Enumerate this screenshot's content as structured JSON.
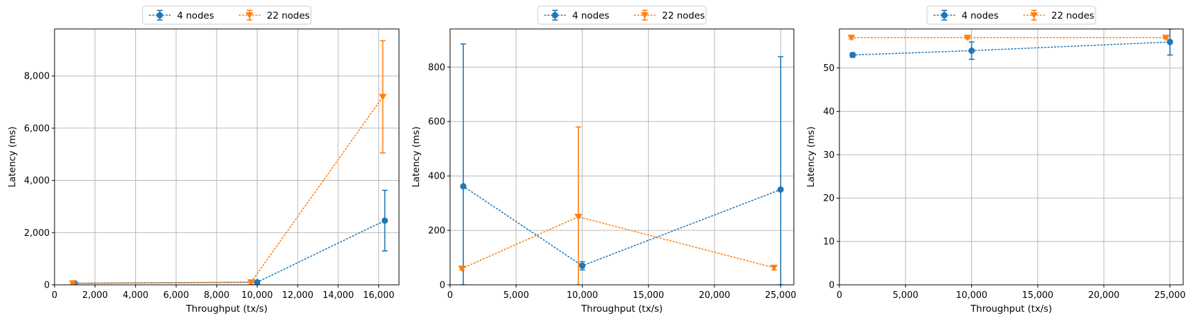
{
  "chart_data": [
    {
      "type": "line",
      "xlabel": "Throughput (tx/s)",
      "ylabel": "Latency (ms)",
      "xlim": [
        0,
        17000
      ],
      "ylim": [
        0,
        9800
      ],
      "xticks": [
        0,
        2000,
        4000,
        6000,
        8000,
        10000,
        12000,
        14000,
        16000
      ],
      "xtick_labels": [
        "0",
        "2,000",
        "4,000",
        "6,000",
        "8,000",
        "10,000",
        "12,000",
        "14,000",
        "16,000"
      ],
      "yticks": [
        0,
        2000,
        4000,
        6000,
        8000
      ],
      "ytick_labels": [
        "0",
        "2,000",
        "4,000",
        "6,000",
        "8,000"
      ],
      "grid": true,
      "legend_position": "top-center (above plot)",
      "series": [
        {
          "name": "4 nodes",
          "color": "#1f77b4",
          "marker": "circle",
          "linestyle": "dotted",
          "x": [
            1000,
            10000,
            16300
          ],
          "y": [
            60,
            100,
            2460
          ],
          "yerr_low": [
            20,
            20,
            1300
          ],
          "yerr_high": [
            20,
            20,
            3620
          ]
        },
        {
          "name": "22 nodes",
          "color": "#ff7f0e",
          "marker": "triangle-down",
          "linestyle": "dotted",
          "x": [
            900,
            9700,
            16200
          ],
          "y": [
            60,
            100,
            7200
          ],
          "yerr_low": [
            20,
            20,
            5050
          ],
          "yerr_high": [
            20,
            20,
            9350
          ]
        }
      ]
    },
    {
      "type": "line",
      "xlabel": "Throughput (tx/s)",
      "ylabel": "Latency (ms)",
      "xlim": [
        0,
        26000
      ],
      "ylim": [
        0,
        940
      ],
      "xticks": [
        0,
        5000,
        10000,
        15000,
        20000,
        25000
      ],
      "xtick_labels": [
        "0",
        "5,000",
        "10,000",
        "15,000",
        "20,000",
        "25,000"
      ],
      "yticks": [
        0,
        200,
        400,
        600,
        800
      ],
      "ytick_labels": [
        "0",
        "200",
        "400",
        "600",
        "800"
      ],
      "grid": true,
      "legend_position": "top-center (above plot)",
      "series": [
        {
          "name": "4 nodes",
          "color": "#1f77b4",
          "marker": "circle",
          "linestyle": "dotted",
          "x": [
            1000,
            10000,
            25000
          ],
          "y": [
            362,
            70,
            350
          ],
          "yerr_low": [
            0,
            55,
            0
          ],
          "yerr_high": [
            885,
            85,
            838
          ]
        },
        {
          "name": "22 nodes",
          "color": "#ff7f0e",
          "marker": "triangle-down",
          "linestyle": "dotted",
          "x": [
            900,
            9700,
            24500
          ],
          "y": [
            60,
            250,
            63
          ],
          "yerr_low": [
            55,
            0,
            55
          ],
          "yerr_high": [
            65,
            580,
            70
          ]
        }
      ]
    },
    {
      "type": "line",
      "xlabel": "Throughput (tx/s)",
      "ylabel": "Latency (ms)",
      "xlim": [
        0,
        26000
      ],
      "ylim": [
        0,
        59
      ],
      "xticks": [
        0,
        5000,
        10000,
        15000,
        20000,
        25000
      ],
      "xtick_labels": [
        "0",
        "5,000",
        "10,000",
        "15,000",
        "20,000",
        "25,000"
      ],
      "yticks": [
        0,
        10,
        20,
        30,
        40,
        50
      ],
      "ytick_labels": [
        "0",
        "10",
        "20",
        "30",
        "40",
        "50"
      ],
      "grid": true,
      "legend_position": "top-center (above plot)",
      "series": [
        {
          "name": "4 nodes",
          "color": "#1f77b4",
          "marker": "circle",
          "linestyle": "dotted",
          "x": [
            1000,
            10000,
            25000
          ],
          "y": [
            53,
            54,
            56
          ],
          "yerr_low": [
            52.5,
            52,
            53
          ],
          "yerr_high": [
            53.5,
            56,
            59
          ]
        },
        {
          "name": "22 nodes",
          "color": "#ff7f0e",
          "marker": "triangle-down",
          "linestyle": "dotted",
          "x": [
            900,
            9700,
            24700
          ],
          "y": [
            57,
            57,
            57
          ],
          "yerr_low": [
            56.7,
            56.7,
            56.7
          ],
          "yerr_high": [
            57.3,
            57.3,
            57.3
          ]
        }
      ]
    }
  ]
}
